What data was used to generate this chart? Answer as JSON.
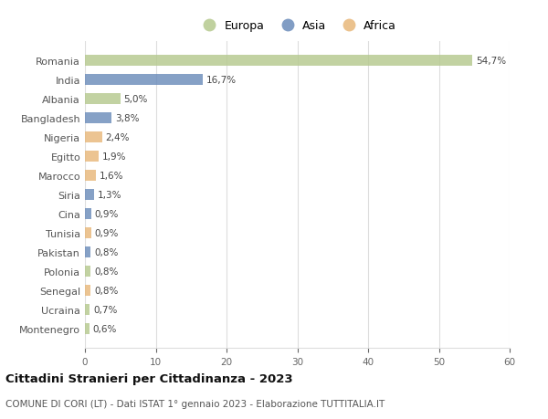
{
  "countries": [
    "Romania",
    "India",
    "Albania",
    "Bangladesh",
    "Nigeria",
    "Egitto",
    "Marocco",
    "Siria",
    "Cina",
    "Tunisia",
    "Pakistan",
    "Polonia",
    "Senegal",
    "Ucraina",
    "Montenegro"
  ],
  "values": [
    54.7,
    16.7,
    5.0,
    3.8,
    2.4,
    1.9,
    1.6,
    1.3,
    0.9,
    0.9,
    0.8,
    0.8,
    0.8,
    0.7,
    0.6
  ],
  "labels": [
    "54,7%",
    "16,7%",
    "5,0%",
    "3,8%",
    "2,4%",
    "1,9%",
    "1,6%",
    "1,3%",
    "0,9%",
    "0,9%",
    "0,8%",
    "0,8%",
    "0,8%",
    "0,7%",
    "0,6%"
  ],
  "continents": [
    "Europa",
    "Asia",
    "Europa",
    "Asia",
    "Africa",
    "Africa",
    "Africa",
    "Asia",
    "Asia",
    "Africa",
    "Asia",
    "Europa",
    "Africa",
    "Europa",
    "Europa"
  ],
  "colors": {
    "Europa": "#b5c98e",
    "Asia": "#6b8cba",
    "Africa": "#e8b87a"
  },
  "xlim": [
    0,
    60
  ],
  "xticks": [
    0,
    10,
    20,
    30,
    40,
    50,
    60
  ],
  "title": "Cittadini Stranieri per Cittadinanza - 2023",
  "subtitle": "COMUNE DI CORI (LT) - Dati ISTAT 1° gennaio 2023 - Elaborazione TUTTITALIA.IT",
  "background_color": "#ffffff",
  "grid_color": "#dddddd",
  "bar_height": 0.55,
  "label_fontsize": 7.5,
  "ytick_fontsize": 8.0,
  "xtick_fontsize": 7.5,
  "legend_fontsize": 9,
  "title_fontsize": 9.5,
  "subtitle_fontsize": 7.5
}
